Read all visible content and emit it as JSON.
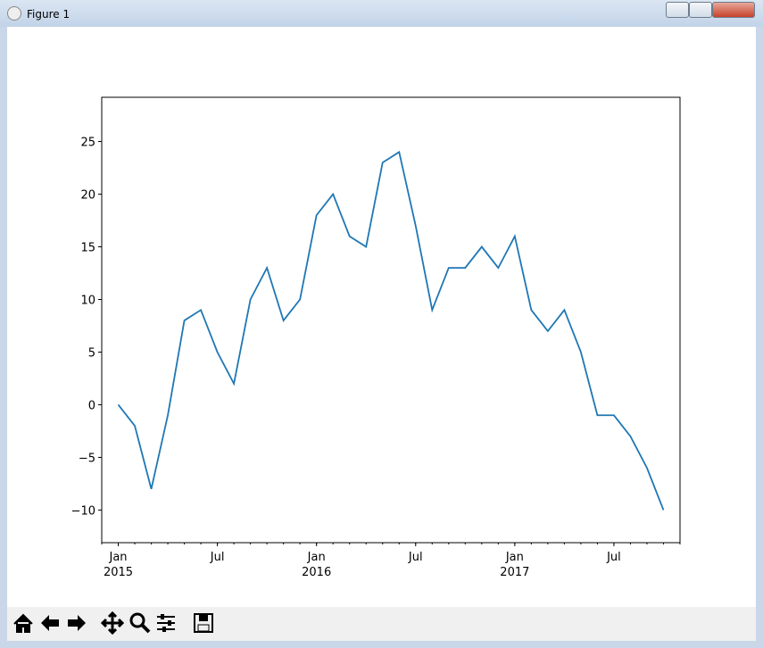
{
  "window": {
    "title": "Figure 1"
  },
  "chart_data": {
    "type": "line",
    "x": [
      "2015-01",
      "2015-02",
      "2015-03",
      "2015-04",
      "2015-05",
      "2015-06",
      "2015-07",
      "2015-08",
      "2015-09",
      "2015-10",
      "2015-11",
      "2015-12",
      "2016-01",
      "2016-02",
      "2016-03",
      "2016-04",
      "2016-05",
      "2016-06",
      "2016-07",
      "2016-08",
      "2016-09",
      "2016-10",
      "2016-11",
      "2016-12",
      "2017-01",
      "2017-02",
      "2017-03",
      "2017-04",
      "2017-05",
      "2017-06",
      "2017-07",
      "2017-08",
      "2017-09",
      "2017-10"
    ],
    "series": [
      {
        "color": "#1f77b4",
        "values": [
          0,
          -2,
          -8,
          -1,
          8,
          9,
          5,
          2,
          10,
          13,
          8,
          10,
          18,
          20,
          16,
          15,
          23,
          24,
          17,
          9,
          13,
          13,
          15,
          13,
          16,
          9,
          7,
          9,
          5,
          -1,
          -1,
          -3,
          -6,
          -10
        ]
      }
    ],
    "xlim": [
      "2014-12",
      "2017-11"
    ],
    "xticks": [
      {
        "value": "2015-01",
        "label": "Jan\n2015"
      },
      {
        "value": "2015-07",
        "label": "Jul"
      },
      {
        "value": "2016-01",
        "label": "Jan\n2016"
      },
      {
        "value": "2016-07",
        "label": "Jul"
      },
      {
        "value": "2017-01",
        "label": "Jan\n2017"
      },
      {
        "value": "2017-07",
        "label": "Jul"
      }
    ],
    "ylim": [
      -13.1,
      29.2
    ],
    "yticks": [
      {
        "value": -10,
        "label": "−10"
      },
      {
        "value": -5,
        "label": "−5"
      },
      0,
      5,
      10,
      15,
      20,
      25
    ]
  }
}
